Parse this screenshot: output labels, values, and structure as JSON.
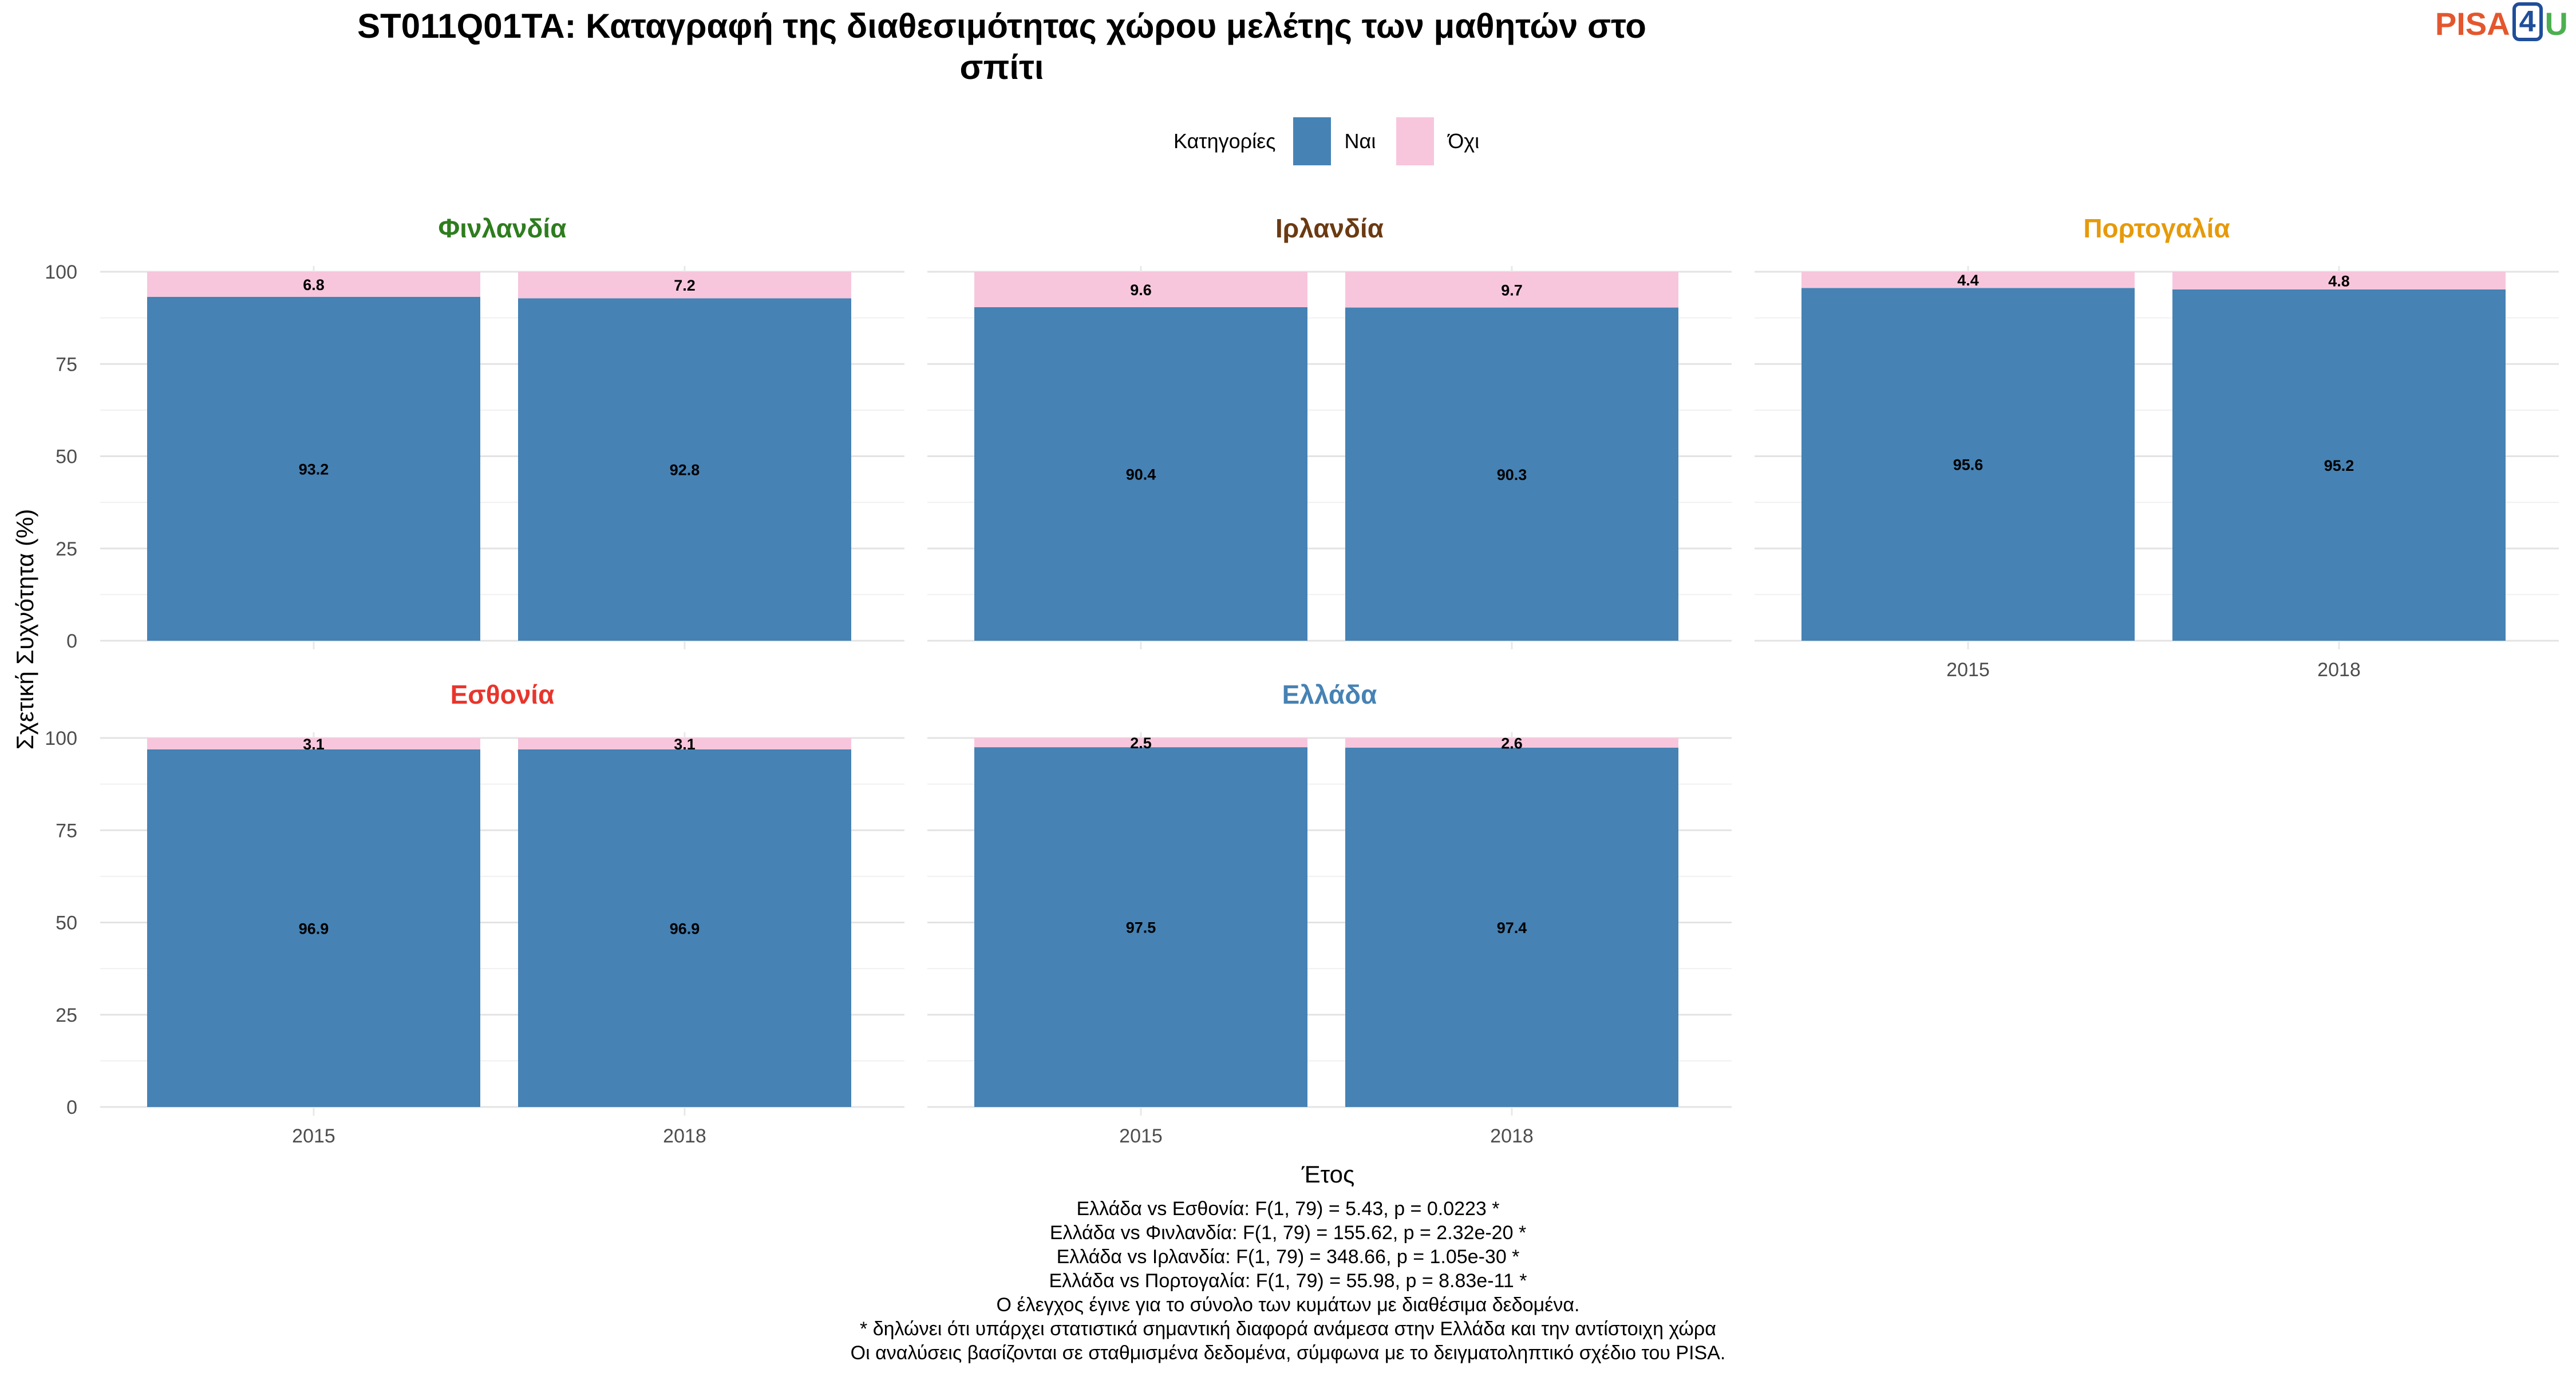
{
  "title_lines": [
    "ST011Q01TA: Καταγραφή της διαθεσιμότητας χώρου μελέτης των μαθητών στο",
    "σπίτι"
  ],
  "logo": {
    "pisa": "PISA",
    "num": "4",
    "u": "U"
  },
  "legend": {
    "title": "Κατηγορίες",
    "items": [
      {
        "label": "Ναι",
        "color": "#4682b4"
      },
      {
        "label": "Όχι",
        "color": "#f7c6dc"
      }
    ]
  },
  "chart_data": {
    "type": "bar",
    "stacked": true,
    "xlabel": "Έτος",
    "ylabel": "Σχετική Συχνότητα (%)",
    "ylim": [
      0,
      100
    ],
    "yticks": [
      0,
      25,
      50,
      75,
      100
    ],
    "categories": [
      "2015",
      "2018"
    ],
    "series_names": [
      "Ναι",
      "Όχι"
    ],
    "series_colors": [
      "#4682b4",
      "#f7c6dc"
    ],
    "panels": [
      {
        "country": "Φινλανδία",
        "color": "#2e7d1e",
        "yes": [
          93.2,
          92.8
        ],
        "no": [
          6.8,
          7.2
        ]
      },
      {
        "country": "Ιρλανδία",
        "color": "#6b3a12",
        "yes": [
          90.4,
          90.3
        ],
        "no": [
          9.6,
          9.7
        ]
      },
      {
        "country": "Πορτογαλία",
        "color": "#e69a0a",
        "yes": [
          95.6,
          95.2
        ],
        "no": [
          4.4,
          4.8
        ]
      },
      {
        "country": "Εσθονία",
        "color": "#e8352c",
        "yes": [
          96.9,
          96.9
        ],
        "no": [
          3.1,
          3.1
        ]
      },
      {
        "country": "Ελλάδα",
        "color": "#4682b4",
        "yes": [
          97.5,
          97.4
        ],
        "no": [
          2.5,
          2.6
        ]
      }
    ]
  },
  "caption_lines": [
    "Ελλάδα vs Εσθονία: F(1, 79) = 5.43, p = 0.0223 *",
    "Ελλάδα vs Φινλανδία: F(1, 79) = 155.62, p = 2.32e-20 *",
    "Ελλάδα vs Ιρλανδία: F(1, 79) = 348.66, p = 1.05e-30 *",
    "Ελλάδα vs Πορτογαλία: F(1, 79) = 55.98, p = 8.83e-11 *",
    "Ο έλεγχος έγινε για το σύνολο των κυμάτων με διαθέσιμα δεδομένα.",
    "* δηλώνει ότι υπάρχει στατιστικά σημαντική διαφορά ανάμεσα στην Ελλάδα και την αντίστοιχη χώρα",
    "Οι αναλύσεις βασίζονται σε σταθμισμένα δεδομένα, σύμφωνα με το δειγματοληπτικό σχέδιο του PISA."
  ]
}
